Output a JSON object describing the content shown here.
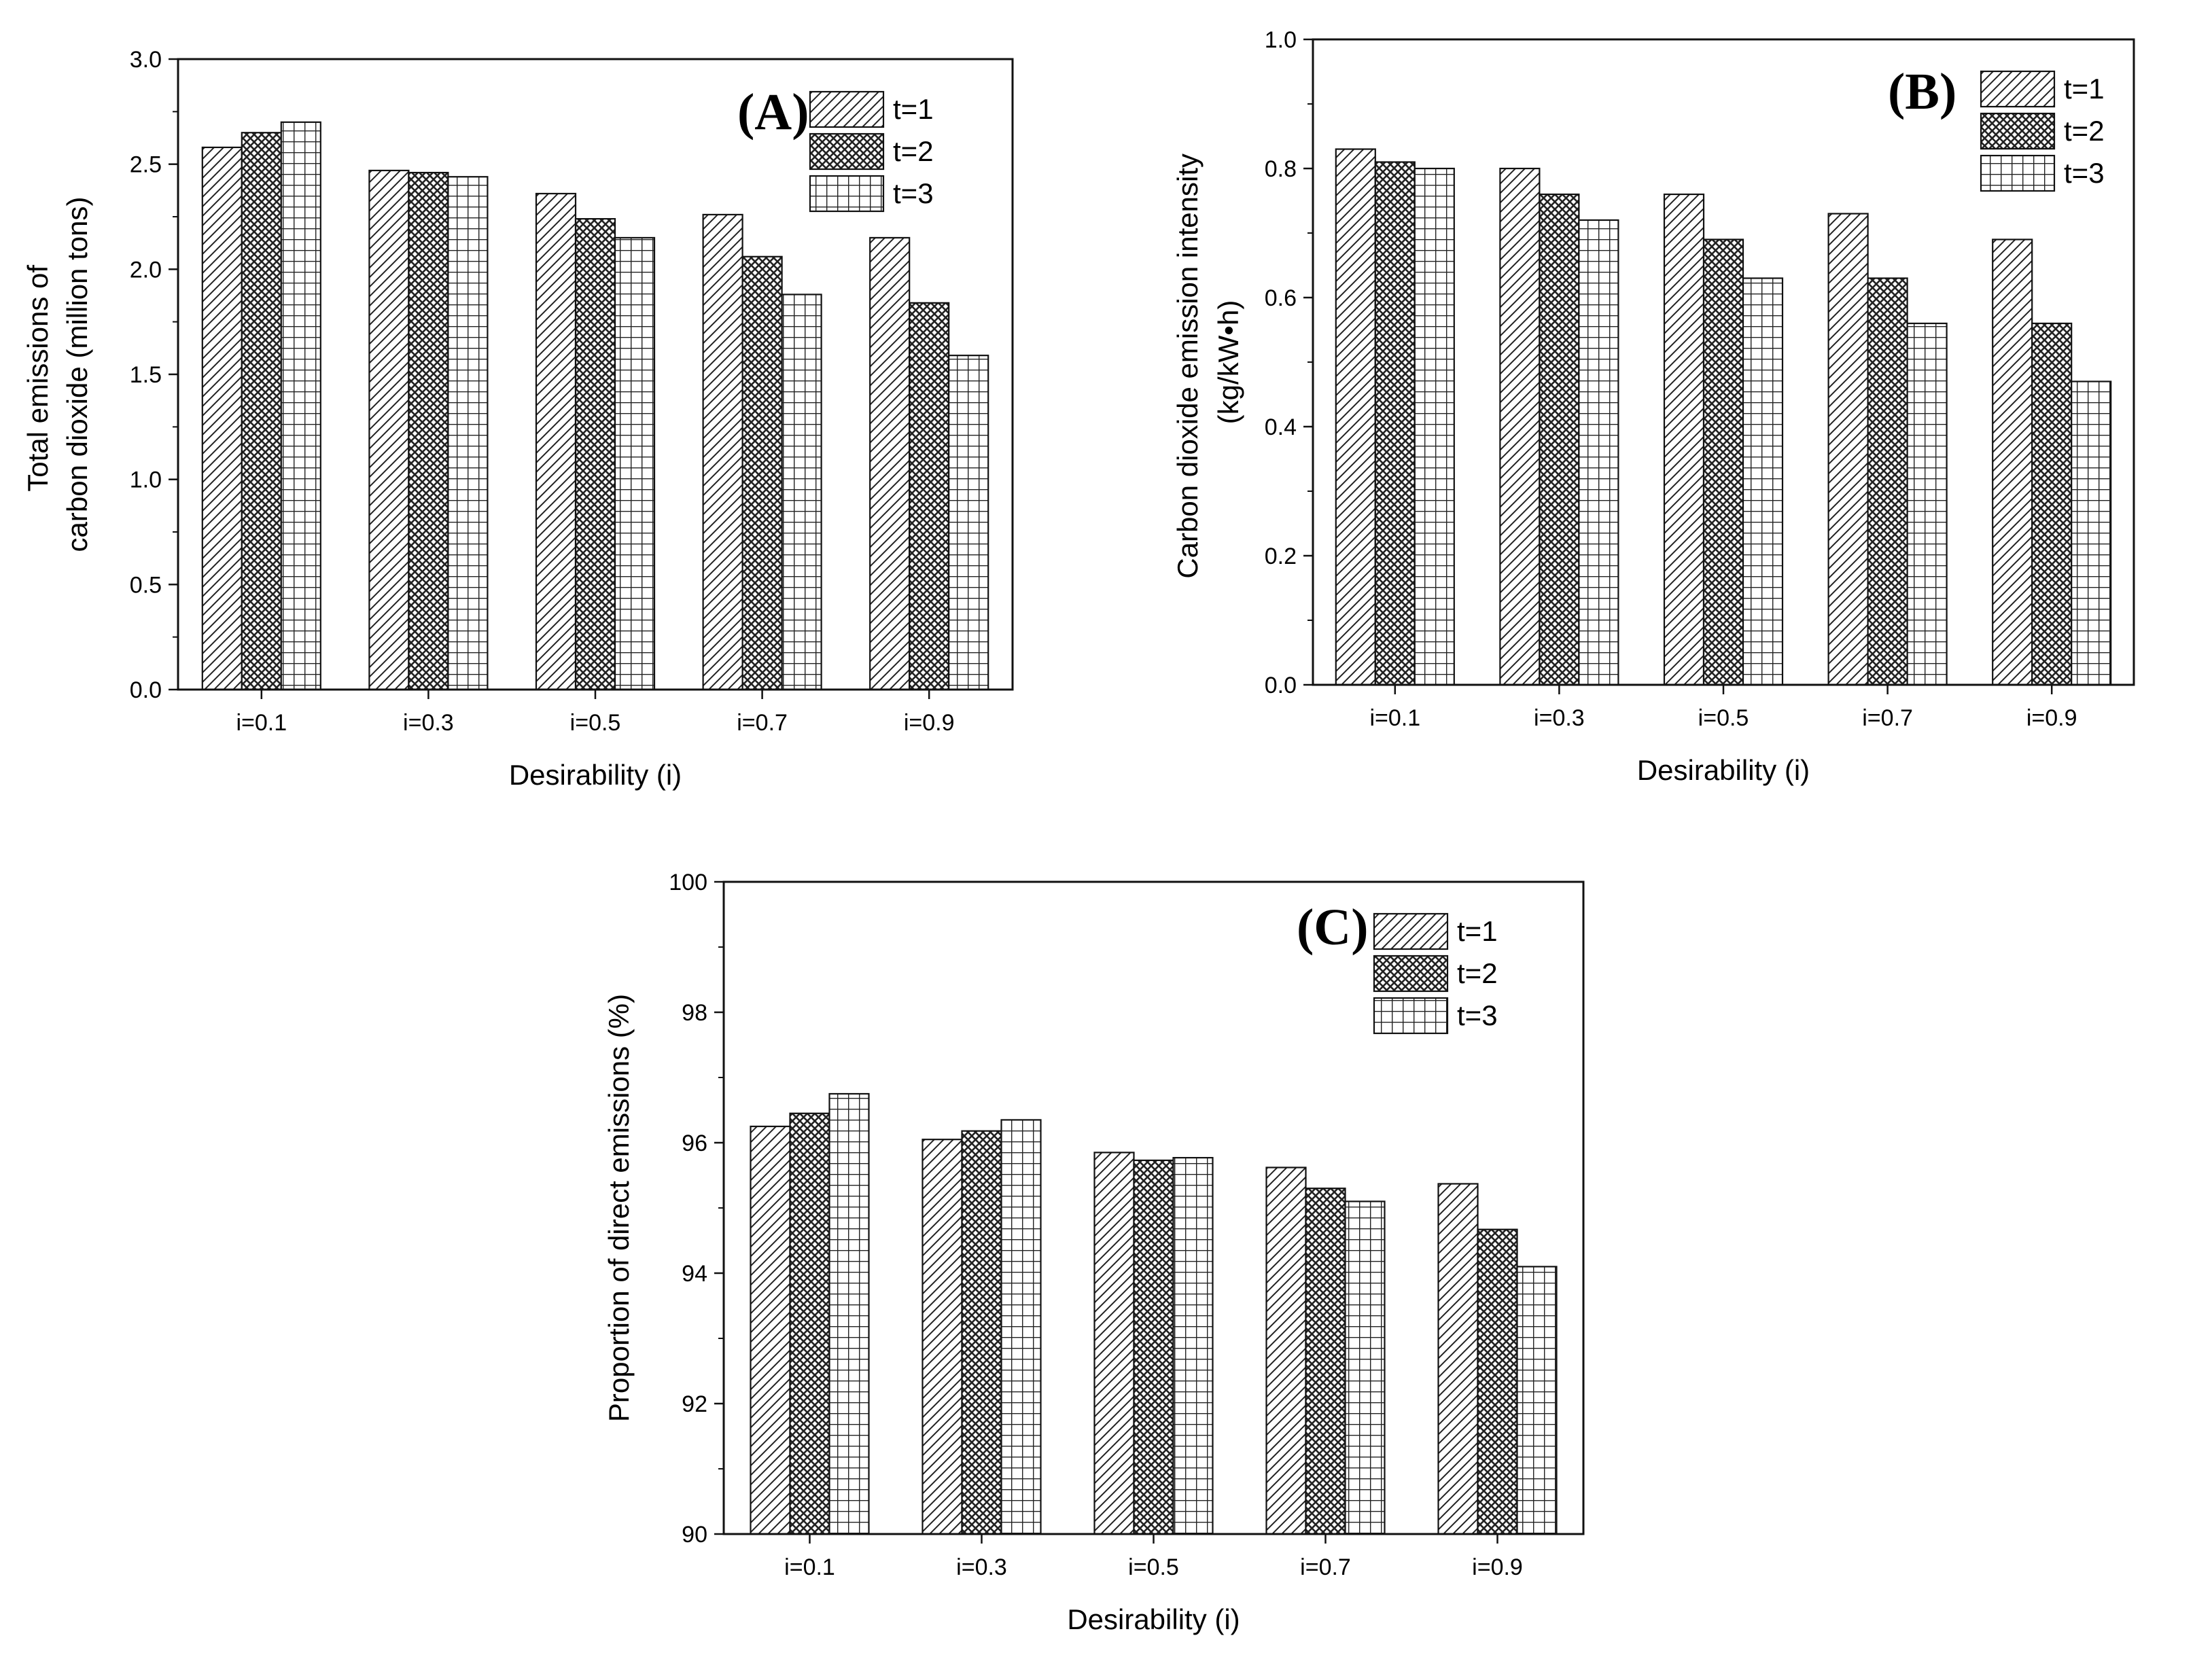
{
  "chart_data": [
    {
      "type": "bar",
      "panel_label": "(A)",
      "categories": [
        "i=0.1",
        "i=0.3",
        "i=0.5",
        "i=0.7",
        "i=0.9"
      ],
      "series": [
        {
          "name": "t=1",
          "pattern": "diagonal",
          "values": [
            2.58,
            2.47,
            2.36,
            2.26,
            2.15
          ]
        },
        {
          "name": "t=2",
          "pattern": "crosshatch",
          "values": [
            2.65,
            2.46,
            2.24,
            2.06,
            1.84
          ]
        },
        {
          "name": "t=3",
          "pattern": "grid",
          "values": [
            2.7,
            2.44,
            2.15,
            1.88,
            1.59
          ]
        }
      ],
      "xlabel": "Desirability (i)",
      "ylabel_lines": [
        "Total emissions of",
        "carbon dioxide (million tons)"
      ],
      "ylim": [
        0,
        3.0
      ],
      "yticks": [
        "0.0",
        "0.5",
        "1.0",
        "1.5",
        "2.0",
        "2.5",
        "3.0"
      ],
      "legend_position": "top-right"
    },
    {
      "type": "bar",
      "panel_label": "(B)",
      "categories": [
        "i=0.1",
        "i=0.3",
        "i=0.5",
        "i=0.7",
        "i=0.9"
      ],
      "series": [
        {
          "name": "t=1",
          "pattern": "diagonal",
          "values": [
            0.83,
            0.8,
            0.76,
            0.73,
            0.69
          ]
        },
        {
          "name": "t=2",
          "pattern": "crosshatch",
          "values": [
            0.81,
            0.76,
            0.69,
            0.63,
            0.56
          ]
        },
        {
          "name": "t=3",
          "pattern": "grid",
          "values": [
            0.8,
            0.72,
            0.63,
            0.56,
            0.47
          ]
        }
      ],
      "xlabel": "Desirability (i)",
      "ylabel_lines": [
        "Carbon dioxide emission intensity",
        "(kg/kW•h)"
      ],
      "ylim": [
        0,
        1.0
      ],
      "yticks": [
        "0.0",
        "0.2",
        "0.4",
        "0.6",
        "0.8",
        "1.0"
      ],
      "legend_position": "top-right"
    },
    {
      "type": "bar",
      "panel_label": "(C)",
      "categories": [
        "i=0.1",
        "i=0.3",
        "i=0.5",
        "i=0.7",
        "i=0.9"
      ],
      "series": [
        {
          "name": "t=1",
          "pattern": "diagonal",
          "values": [
            96.25,
            96.05,
            95.85,
            95.62,
            95.37
          ]
        },
        {
          "name": "t=2",
          "pattern": "crosshatch",
          "values": [
            96.45,
            96.18,
            95.73,
            95.3,
            94.67
          ]
        },
        {
          "name": "t=3",
          "pattern": "grid",
          "values": [
            96.75,
            96.35,
            95.77,
            95.1,
            94.1
          ]
        }
      ],
      "xlabel": "Desirability (i)",
      "ylabel_lines": [
        "Proportion of direct emissions (%)"
      ],
      "ylim": [
        90,
        100
      ],
      "yticks": [
        "90",
        "92",
        "94",
        "96",
        "98",
        "100"
      ],
      "legend_position": "top-right"
    }
  ]
}
